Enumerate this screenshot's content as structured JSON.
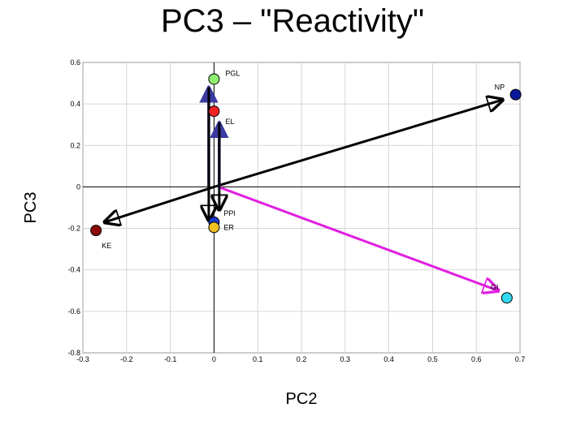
{
  "slide_title": "PC3 – \"Reactivity\"",
  "chart_data": {
    "type": "scatter",
    "title": "PC3 – \"Reactivity\"",
    "xlabel": "PC2",
    "ylabel": "PC3",
    "xlim": [
      -0.3,
      0.7
    ],
    "ylim": [
      -0.8,
      0.6
    ],
    "grid": true,
    "x_ticks": [
      -0.3,
      -0.2,
      -0.1,
      0,
      0.1,
      0.2,
      0.3,
      0.4,
      0.5,
      0.6,
      0.7
    ],
    "x_tick_labels": [
      "-0.3",
      "-0.2",
      "-0.1",
      "0",
      "0.1",
      "0.2",
      "0.3",
      "0.4",
      "0.5",
      "0.6",
      "0.7"
    ],
    "y_ticks": [
      -0.8,
      -0.6,
      -0.4,
      -0.2,
      0,
      0.2,
      0.4,
      0.6
    ],
    "y_tick_labels": [
      "-0.8",
      "-0.6",
      "-0.4",
      "-0.2",
      "0",
      "0.2",
      "0.4",
      "0.6"
    ],
    "points": [
      {
        "label": "PGL",
        "x": 0.0,
        "y": 0.52,
        "color": "#90ee70"
      },
      {
        "label": "EL",
        "x": 0.0,
        "y": 0.365,
        "color": "#ee2222"
      },
      {
        "label": "NP",
        "x": 0.69,
        "y": 0.445,
        "color": "#0a1a9a"
      },
      {
        "label": "PPI",
        "x": 0.0,
        "y": -0.17,
        "color": "#1a3ad0"
      },
      {
        "label": "ER",
        "x": 0.0,
        "y": -0.195,
        "color": "#f0c020"
      },
      {
        "label": "KE",
        "x": -0.27,
        "y": -0.21,
        "color": "#8a0a0a"
      },
      {
        "label": "GI",
        "x": 0.67,
        "y": -0.535,
        "color": "#30d8f0"
      }
    ],
    "arrows": [
      {
        "from": [
          0,
          0
        ],
        "to": [
          0.66,
          0.42
        ],
        "color": "#000000"
      },
      {
        "from": [
          0,
          0
        ],
        "to": [
          -0.25,
          -0.17
        ],
        "color": "#000000"
      },
      {
        "from": [
          0.01,
          0.0
        ],
        "to": [
          0.65,
          -0.5
        ],
        "color": "#e020e0"
      },
      {
        "from": [
          -0.012,
          0.0
        ],
        "to": [
          -0.012,
          0.48
        ],
        "color": "#3a3aa0"
      },
      {
        "from": [
          0.012,
          0.0
        ],
        "to": [
          0.012,
          0.31
        ],
        "color": "#3a3aa0"
      },
      {
        "from": [
          -0.012,
          0.48
        ],
        "to": [
          -0.012,
          -0.16
        ],
        "color": "#000000"
      },
      {
        "from": [
          0.012,
          0.31
        ],
        "to": [
          0.012,
          -0.11
        ],
        "color": "#000000"
      }
    ],
    "colors": {
      "grid": "#cccccc",
      "axis": "#000000"
    }
  }
}
